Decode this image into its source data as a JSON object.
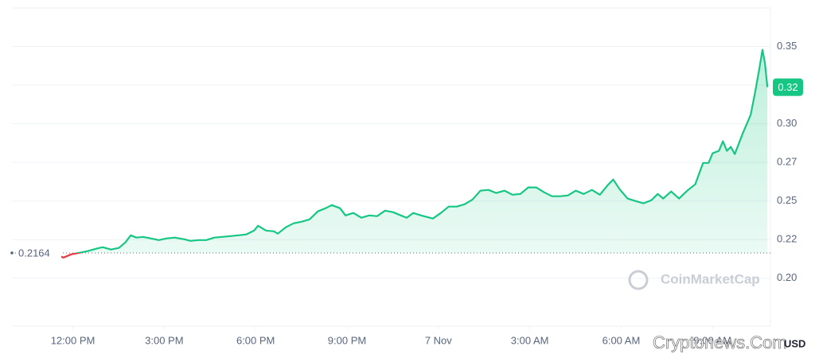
{
  "chart_data": {
    "type": "line",
    "y_axis_label": "USD",
    "watermark": "CoinMarketCap",
    "source_watermark": "Cryptonews.Com",
    "reference": 0.2164,
    "last_price": {
      "value": 0.3237,
      "label": "0.32"
    },
    "up_color": "#16c784",
    "down_color": "#ea3943",
    "grid": true,
    "xlim": [
      -2,
      22.9
    ],
    "ylim": [
      0.169,
      0.375
    ],
    "xticks": [
      {
        "value": 0,
        "label": "12:00 PM"
      },
      {
        "value": 3,
        "label": "3:00 PM"
      },
      {
        "value": 6,
        "label": "6:00 PM"
      },
      {
        "value": 9,
        "label": "9:00 PM"
      },
      {
        "value": 12,
        "label": "7 Nov"
      },
      {
        "value": 15,
        "label": "3:00 AM"
      },
      {
        "value": 18,
        "label": "6:00 AM"
      },
      {
        "value": 21,
        "label": "9:00 AM"
      }
    ],
    "yticks": [
      {
        "value": 0.2,
        "label": "0.20"
      },
      {
        "value": 0.225,
        "label": "0.22"
      },
      0.25,
      {
        "value": 0.275,
        "label": "0.27"
      },
      {
        "value": 0.3,
        "label": "0.30"
      },
      {
        "value": 0.325,
        "label": "0.32"
      },
      0.35
    ],
    "x": [
      -0.57,
      -0.31,
      -0.05,
      0.21,
      0.47,
      0.86,
      0.99,
      1.25,
      1.51,
      1.72,
      1.9,
      2.09,
      2.3,
      2.56,
      2.82,
      3.08,
      3.34,
      3.65,
      3.86,
      4.12,
      4.38,
      4.64,
      4.9,
      5.17,
      5.43,
      5.69,
      5.95,
      6.08,
      6.34,
      6.6,
      6.73,
      6.99,
      7.25,
      7.51,
      7.77,
      8.04,
      8.3,
      8.5,
      8.77,
      8.95,
      9.21,
      9.47,
      9.73,
      9.99,
      10.25,
      10.51,
      10.77,
      10.96,
      11.17,
      11.43,
      11.82,
      12.08,
      12.34,
      12.6,
      12.86,
      13.12,
      13.38,
      13.64,
      13.9,
      14.17,
      14.43,
      14.69,
      14.95,
      15.21,
      15.47,
      15.73,
      15.99,
      16.25,
      16.51,
      16.77,
      17.04,
      17.3,
      17.56,
      17.74,
      17.95,
      18.21,
      18.47,
      18.73,
      18.99,
      19.2,
      19.38,
      19.64,
      19.9,
      20.17,
      20.43,
      20.69,
      20.87,
      21.0,
      21.21,
      21.34,
      21.47,
      21.6,
      21.73,
      21.99,
      22.25,
      22.38,
      22.52,
      22.64,
      22.72,
      22.8
    ],
    "values": [
      0.2155,
      0.2134,
      0.2155,
      0.2165,
      0.2175,
      0.2196,
      0.2201,
      0.2186,
      0.2196,
      0.2232,
      0.2278,
      0.2263,
      0.2268,
      0.2258,
      0.2247,
      0.2258,
      0.2263,
      0.2253,
      0.2242,
      0.2247,
      0.2247,
      0.2263,
      0.2268,
      0.2273,
      0.2278,
      0.2284,
      0.2309,
      0.234,
      0.2309,
      0.2304,
      0.2289,
      0.233,
      0.2356,
      0.2366,
      0.2381,
      0.2433,
      0.2454,
      0.2474,
      0.2454,
      0.2407,
      0.2423,
      0.2392,
      0.2407,
      0.2402,
      0.2438,
      0.2428,
      0.2407,
      0.2392,
      0.2423,
      0.2407,
      0.2387,
      0.2423,
      0.2464,
      0.2464,
      0.2479,
      0.251,
      0.2567,
      0.2572,
      0.2552,
      0.2567,
      0.2541,
      0.2546,
      0.2588,
      0.2588,
      0.2557,
      0.2531,
      0.2531,
      0.2536,
      0.2567,
      0.2546,
      0.2572,
      0.2541,
      0.2603,
      0.2639,
      0.2577,
      0.2516,
      0.25,
      0.2485,
      0.2505,
      0.2546,
      0.2516,
      0.2562,
      0.2516,
      0.2567,
      0.2608,
      0.2747,
      0.2747,
      0.2809,
      0.2825,
      0.2887,
      0.2825,
      0.2851,
      0.2804,
      0.2938,
      0.3057,
      0.3186,
      0.334,
      0.3479,
      0.3392,
      0.3237
    ]
  }
}
